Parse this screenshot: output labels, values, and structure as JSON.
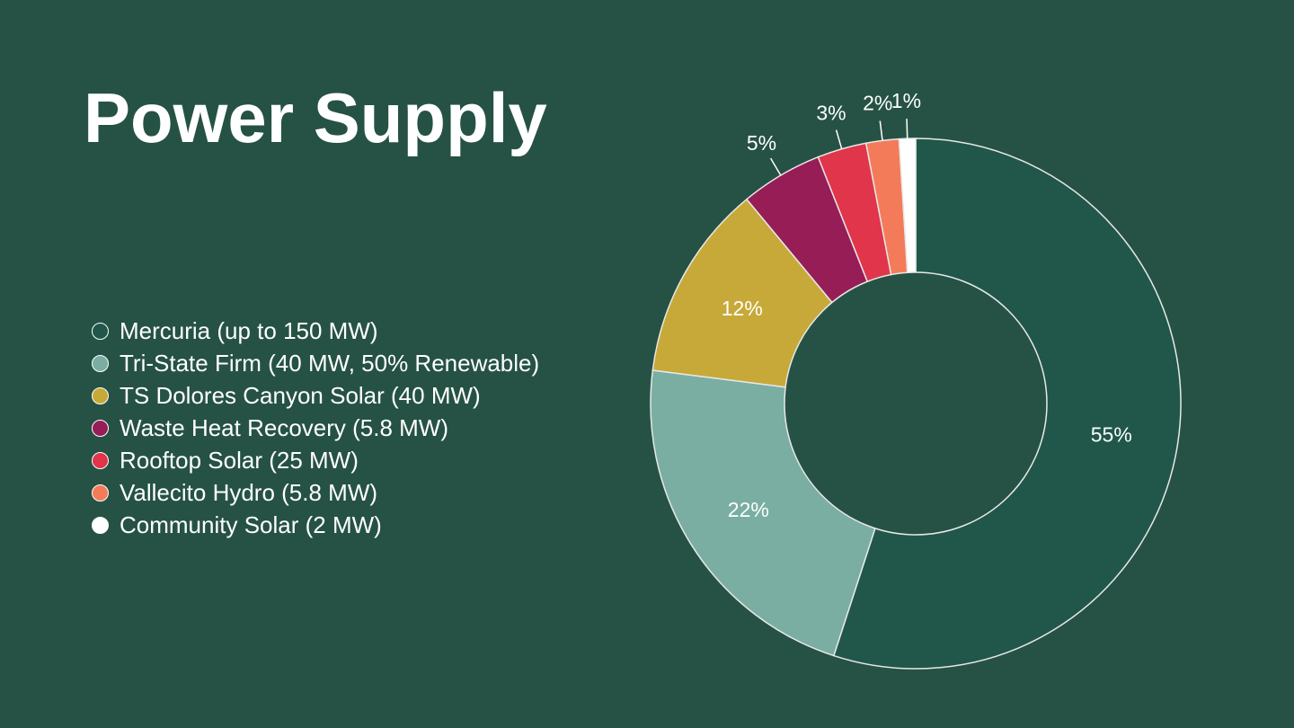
{
  "slide": {
    "title": "Power Supply",
    "background": "#255244"
  },
  "chart_data": {
    "type": "pie",
    "hole": true,
    "legend_position": "left",
    "categories": [
      "Mercuria (up to 150 MW)",
      "Tri-State Firm (40 MW, 50% Renewable)",
      "TS Dolores Canyon Solar (40 MW)",
      "Waste Heat Recovery (5.8 MW)",
      "Rooftop Solar (25 MW)",
      "Vallecito Hydro (5.8 MW)",
      "Community Solar (2 MW)"
    ],
    "values": [
      55,
      22,
      12,
      5,
      3,
      2,
      1
    ],
    "labels": [
      "55%",
      "22%",
      "12%",
      "5%",
      "3%",
      "2%",
      "1%"
    ],
    "colors": [
      "#20574a",
      "#7aaea2",
      "#c7a939",
      "#961d56",
      "#e0354a",
      "#f47b59",
      "#ffffff"
    ]
  }
}
